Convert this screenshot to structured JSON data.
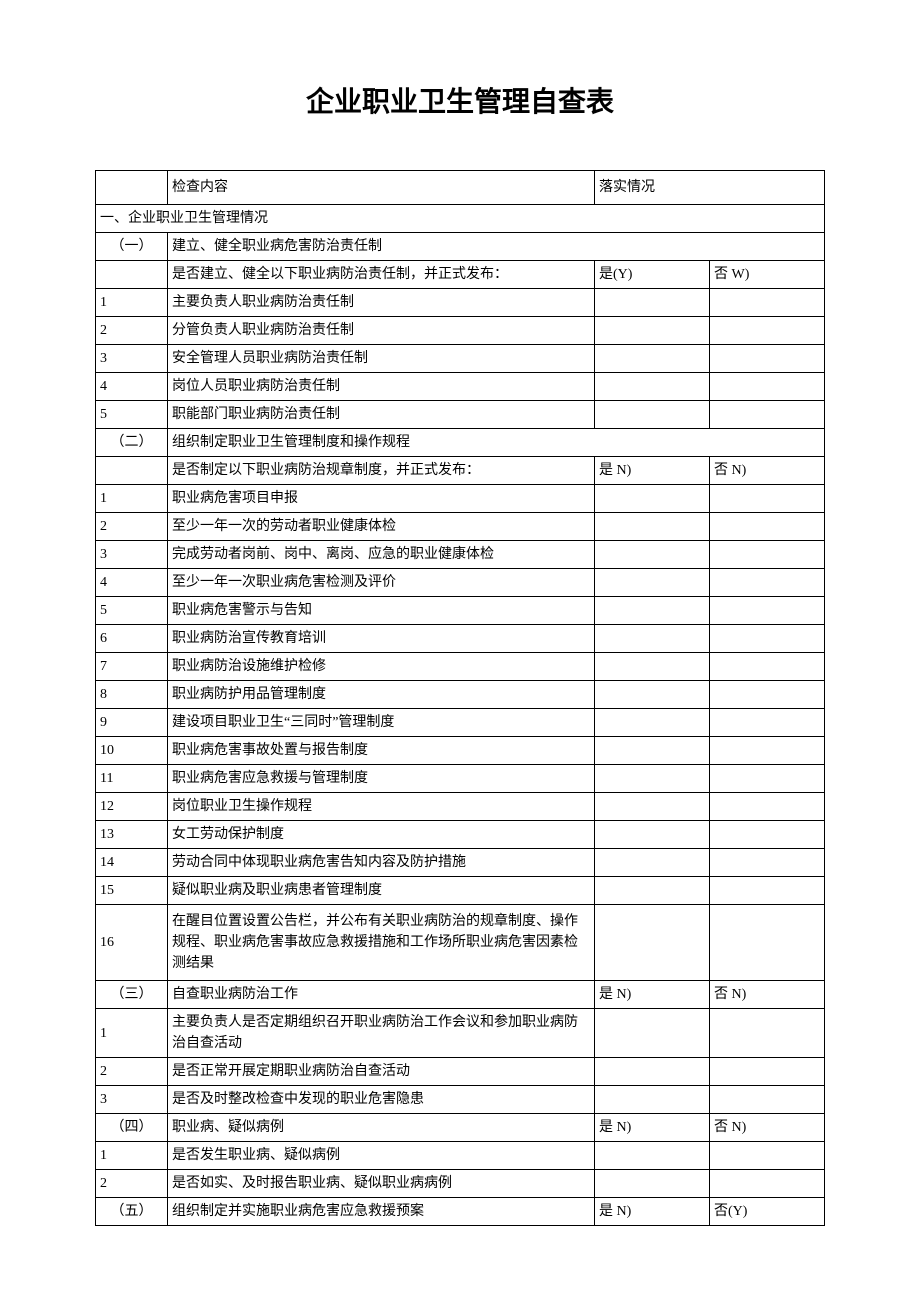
{
  "title": "企业职业卫生管理自查表",
  "header": {
    "col1": "",
    "col2": "检查内容",
    "col3": "落实情况"
  },
  "section1": {
    "label": "一、企业职业卫生管理情况"
  },
  "s1_1": {
    "num": "（一）",
    "title": "建立、健全职业病危害防治责任制",
    "prompt": "是否建立、健全以下职业病防治责任制，并正式发布：",
    "yes": "是(Y)",
    "no": "否 W)",
    "items": [
      {
        "n": "1",
        "t": "主要负责人职业病防治责任制"
      },
      {
        "n": "2",
        "t": "分管负责人职业病防治责任制"
      },
      {
        "n": "3",
        "t": "安全管理人员职业病防治责任制"
      },
      {
        "n": "4",
        "t": "岗位人员职业病防治责任制"
      },
      {
        "n": "5",
        "t": "职能部门职业病防治责任制"
      }
    ]
  },
  "s1_2": {
    "num": "（二）",
    "title": "组织制定职业卫生管理制度和操作规程",
    "prompt": "是否制定以下职业病防治规章制度，并正式发布：",
    "yes": "是 N)",
    "no": "否 N)",
    "items": [
      {
        "n": "1",
        "t": "职业病危害项目申报"
      },
      {
        "n": "2",
        "t": "至少一年一次的劳动者职业健康体检"
      },
      {
        "n": "3",
        "t": "完成劳动者岗前、岗中、离岗、应急的职业健康体检"
      },
      {
        "n": "4",
        "t": "至少一年一次职业病危害检测及评价"
      },
      {
        "n": "5",
        "t": "职业病危害警示与告知"
      },
      {
        "n": "6",
        "t": "职业病防治宣传教育培训"
      },
      {
        "n": "7",
        "t": "职业病防治设施维护检修"
      },
      {
        "n": "8",
        "t": "职业病防护用品管理制度"
      },
      {
        "n": "9",
        "t": "建设项目职业卫生“三同时”管理制度"
      },
      {
        "n": "10",
        "t": "职业病危害事故处置与报告制度"
      },
      {
        "n": "11",
        "t": "职业病危害应急救援与管理制度"
      },
      {
        "n": "12",
        "t": "岗位职业卫生操作规程"
      },
      {
        "n": "13",
        "t": "女工劳动保护制度"
      },
      {
        "n": "14",
        "t": "劳动合同中体现职业病危害告知内容及防护措施"
      },
      {
        "n": "15",
        "t": "疑似职业病及职业病患者管理制度"
      },
      {
        "n": "16",
        "t": "在醒目位置设置公告栏，并公布有关职业病防治的规章制度、操作规程、职业病危害事故应急救援措施和工作场所职业病危害因素检测结果"
      }
    ]
  },
  "s1_3": {
    "num": "（三）",
    "title": "自查职业病防治工作",
    "yes": "是 N)",
    "no": "否 N)",
    "items": [
      {
        "n": "1",
        "t": "主要负责人是否定期组织召开职业病防治工作会议和参加职业病防治自查活动"
      },
      {
        "n": "2",
        "t": "是否正常开展定期职业病防治自查活动"
      },
      {
        "n": "3",
        "t": "是否及时整改检查中发现的职业危害隐患"
      }
    ]
  },
  "s1_4": {
    "num": "（四）",
    "title": "职业病、疑似病例",
    "yes": "是 N)",
    "no": "否 N)",
    "items": [
      {
        "n": "1",
        "t": "是否发生职业病、疑似病例"
      },
      {
        "n": "2",
        "t": "是否如实、及时报告职业病、疑似职业病病例"
      }
    ]
  },
  "s1_5": {
    "num": "（五）",
    "title": "组织制定并实施职业病危害应急救援预案",
    "yes": "是 N)",
    "no": "否(Y)"
  }
}
